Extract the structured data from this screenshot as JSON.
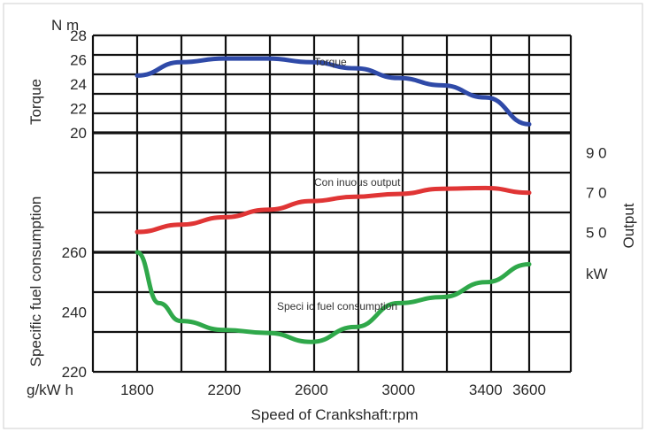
{
  "chart_data": {
    "type": "line",
    "xlabel": "Speed of Crankshaft:rpm",
    "xlim": [
      1800,
      3600
    ],
    "x_ticks": [
      "1800",
      "2200",
      "2600",
      "3000",
      "3400",
      "3600"
    ],
    "panels": [
      {
        "id": "torque",
        "ylabel": "Torque",
        "unit": "N m",
        "ylim": [
          20,
          28
        ],
        "y_ticks": [
          "20",
          "22",
          "24",
          "26",
          "28"
        ],
        "series": [
          {
            "name": "Torque",
            "color": "#2f4aa8",
            "x": [
              1800,
              2000,
              2200,
              2400,
              2600,
              2800,
              3000,
              3200,
              3400,
              3600
            ],
            "y": [
              24.7,
              25.8,
              26.1,
              26.1,
              25.8,
              25.3,
              24.5,
              23.9,
              22.9,
              20.7
            ]
          }
        ]
      },
      {
        "id": "output",
        "ylabel": "Output",
        "unit": "kW",
        "ylim": [
          40,
          100
        ],
        "y_ticks": [
          "5 0",
          "7 0",
          "9 0"
        ],
        "y_tick_values": [
          50,
          70,
          90
        ],
        "series": [
          {
            "name": "Con inuous output",
            "color": "#e03535",
            "x": [
              1800,
              2000,
              2200,
              2400,
              2600,
              2800,
              3000,
              3200,
              3400,
              3600
            ],
            "y": [
              50.2,
              53.9,
              57.6,
              61.4,
              65.7,
              67.9,
              69.3,
              71.9,
              72.3,
              69.9
            ]
          }
        ]
      },
      {
        "id": "sfc",
        "ylabel": "Specific fuel consumption",
        "unit": "g/kW h",
        "ylim": [
          220,
          260
        ],
        "y_ticks": [
          "220",
          "240",
          "260"
        ],
        "series": [
          {
            "name": "Speci ic fuel consumption",
            "color": "#2fa84a",
            "x": [
              1800,
              1900,
              2000,
              2200,
              2400,
              2600,
              2800,
              3000,
              3200,
              3400,
              3600
            ],
            "y": [
              260,
              243,
              237,
              234,
              233,
              230,
              235,
              243,
              245,
              250,
              256
            ]
          }
        ]
      }
    ],
    "grid": true,
    "legend": "none"
  }
}
